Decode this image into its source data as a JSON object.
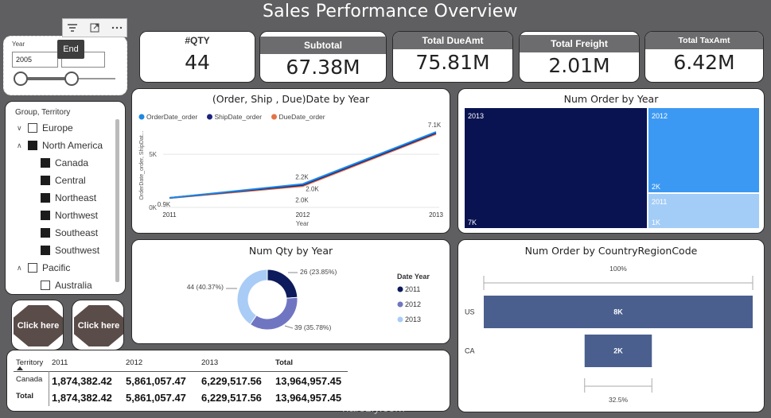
{
  "title": "Sales Performance Overview",
  "toolbar": {
    "tooltip": "End"
  },
  "year_slicer": {
    "label": "Year",
    "start": "2005",
    "end": ""
  },
  "kpis": [
    {
      "label": "#QTY",
      "value": "44"
    },
    {
      "label": "Subtotal",
      "value": "67.38M"
    },
    {
      "label": "Total DueAmt",
      "value": "75.81M"
    },
    {
      "label": "Total Freight",
      "value": "2.01M"
    },
    {
      "label": "Total TaxAmt",
      "value": "6.42M"
    }
  ],
  "territory": {
    "header": "Group, Territory",
    "items": [
      {
        "label": "Europe",
        "level": 0,
        "checked": false,
        "expanded": false
      },
      {
        "label": "North America",
        "level": 0,
        "checked": true,
        "expanded": true
      },
      {
        "label": "Canada",
        "level": 1,
        "checked": true
      },
      {
        "label": "Central",
        "level": 1,
        "checked": true
      },
      {
        "label": "Northeast",
        "level": 1,
        "checked": true
      },
      {
        "label": "Northwest",
        "level": 1,
        "checked": true
      },
      {
        "label": "Southeast",
        "level": 1,
        "checked": true
      },
      {
        "label": "Southwest",
        "level": 1,
        "checked": true
      },
      {
        "label": "Pacific",
        "level": 0,
        "checked": false,
        "expanded": true
      },
      {
        "label": "Australia",
        "level": 1,
        "checked": false
      }
    ]
  },
  "buttons": {
    "left": "Click here",
    "right": "Click here"
  },
  "table": {
    "headers": [
      "Territory",
      "2011",
      "2012",
      "2013",
      "Total"
    ],
    "rows": [
      [
        "Canada",
        "1,874,382.42",
        "5,861,057.47",
        "6,229,517.56",
        "13,964,957.45"
      ],
      [
        "Total",
        "1,874,382.42",
        "5,861,057.47",
        "6,229,517.56",
        "13,964,957.45"
      ]
    ]
  },
  "colors": {
    "order": "#1e88e5",
    "ship": "#1a237e",
    "due": "#e57345",
    "donut_2011": "#0d1b5c",
    "donut_2012": "#7075c2",
    "donut_2013": "#a9ccf6",
    "tree_2013": "#0a1352",
    "tree_2012": "#3c99f3",
    "tree_2011": "#a3cdf7",
    "bar": "#4a5f8e"
  },
  "chart_data": [
    {
      "type": "line",
      "title": "(Order, Ship , Due)Date by Year",
      "xlabel": "Year",
      "ylabel": "OrderDate_order, ShipDat...",
      "categories": [
        "2011",
        "2012",
        "2013"
      ],
      "yticks": [
        "0K",
        "5K"
      ],
      "ylim": [
        0,
        8000
      ],
      "series": [
        {
          "name": "OrderDate_order",
          "values": [
            900,
            2200,
            7100
          ]
        },
        {
          "name": "ShipDate_order",
          "values": [
            900,
            2100,
            7000
          ]
        },
        {
          "name": "DueDate_order",
          "values": [
            880,
            2000,
            6900
          ]
        }
      ],
      "labels": [
        "0.9K",
        "2.2K",
        "2.0K",
        "2.0K",
        "7.1K"
      ]
    },
    {
      "type": "heatmap",
      "title": "Num Order by Year",
      "items": [
        {
          "label": "2013",
          "value_label": "7K",
          "value": 7000
        },
        {
          "label": "2012",
          "value_label": "2K",
          "value": 2000
        },
        {
          "label": "2011",
          "value_label": "1K",
          "value": 1000
        }
      ]
    },
    {
      "type": "pie",
      "title": "Num Qty by Year",
      "legend_title": "Date Year",
      "slices": [
        {
          "label": "2011",
          "value": 26,
          "pct": "26 (23.85%)"
        },
        {
          "label": "2012",
          "value": 39,
          "pct": "39 (35.78%)"
        },
        {
          "label": "2013",
          "value": 44,
          "pct": "44 (40.37%)"
        }
      ]
    },
    {
      "type": "bar",
      "title": "Num Order by CountryRegionCode",
      "categories": [
        "US",
        "CA"
      ],
      "values": [
        8000,
        2000
      ],
      "value_labels": [
        "8K",
        "2K"
      ],
      "top_pct": "100%",
      "bottom_pct": "32.5%"
    }
  ],
  "watermark": "nafezly.com"
}
